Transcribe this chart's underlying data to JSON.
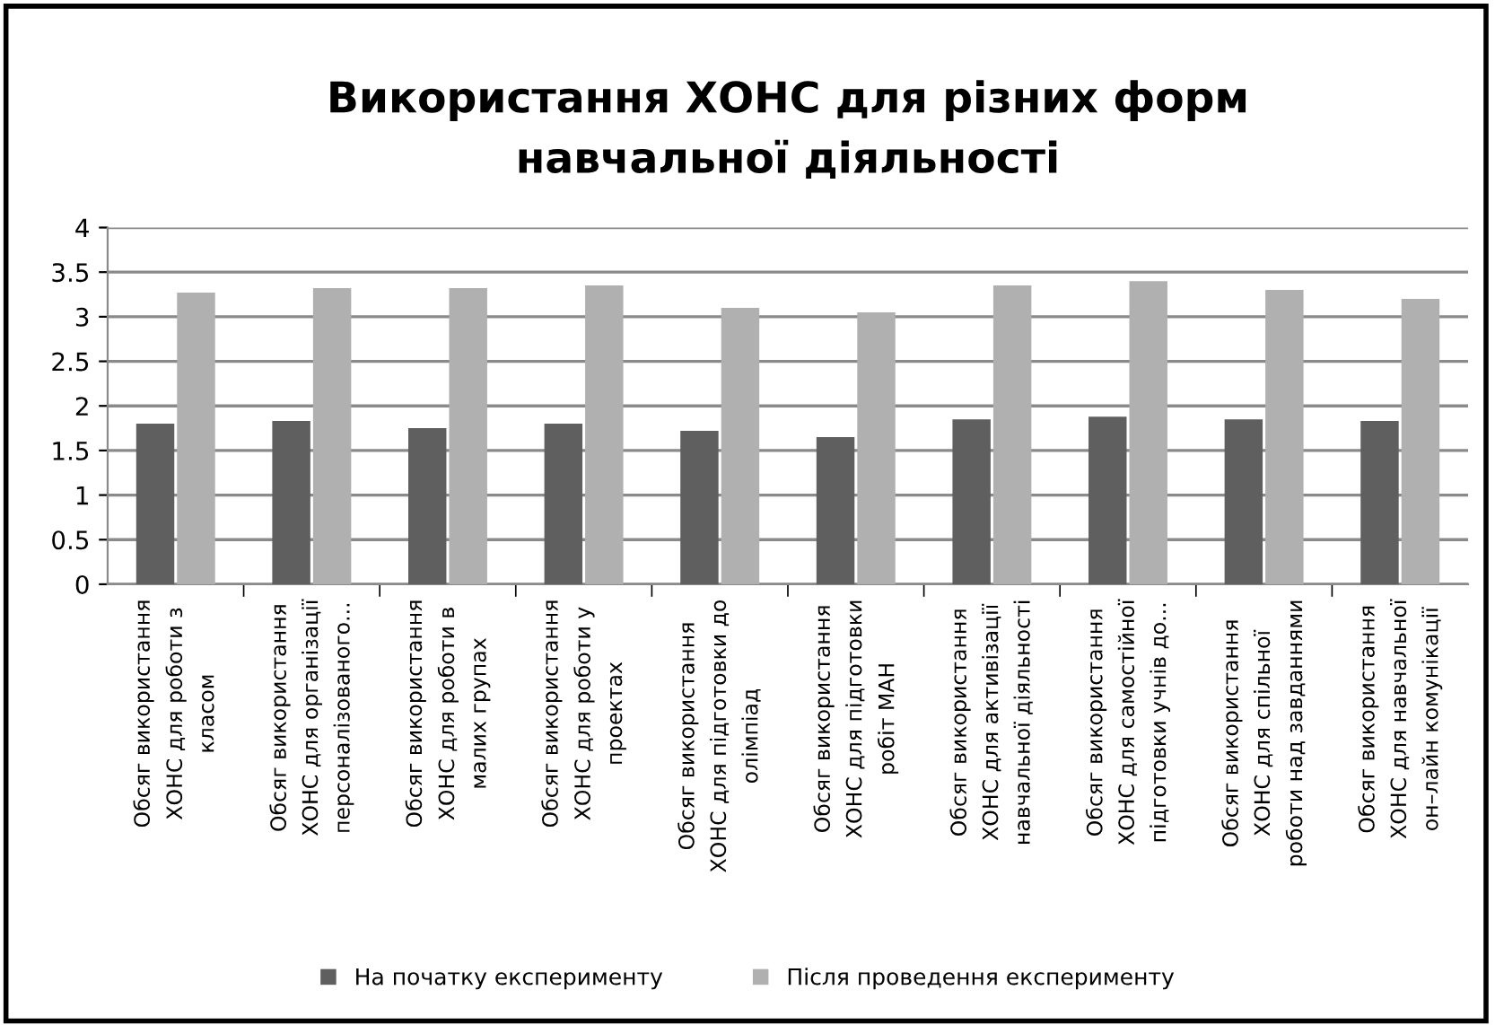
{
  "chart_data": {
    "type": "bar",
    "title": "Використання ХОНС для різних форм\nнавчальної діяльності",
    "categories": [
      "Обсяг використання\nХОНС для роботи з\nкласом",
      "Обсяг використання\nХОНС для організації\nперсоналізованого...",
      "Обсяг використання\nХОНС для роботи в\nмалих групах",
      "Обсяг використання\nХОНС для роботи у\nпроектах",
      "Обсяг використання\nХОНС для підготовки до\nолімпіад",
      "Обсяг використання\nХОНС для підготовки\nробіт МАН",
      "Обсяг використання\nХОНС для активізації\nнавчальної діяльності",
      "Обсяг використання\nХОНС для самостійної\nпідготовки учнів до...",
      "Обсяг використання\nХОНС для спільної\nроботи над завданнями",
      "Обсяг використання\nХОНС для навчальної\nон–лайн комунікації"
    ],
    "series": [
      {
        "name": "На початку експерименту",
        "color": "#5f5f5f",
        "values": [
          1.8,
          1.83,
          1.75,
          1.8,
          1.72,
          1.65,
          1.85,
          1.88,
          1.85,
          1.83
        ]
      },
      {
        "name": "Після проведення експерименту",
        "color": "#b0b0b0",
        "values": [
          3.27,
          3.32,
          3.32,
          3.35,
          3.1,
          3.05,
          3.35,
          3.4,
          3.3,
          3.2
        ]
      }
    ],
    "ylim": [
      0,
      4
    ],
    "yticks": [
      0,
      0.5,
      1,
      1.5,
      2,
      2.5,
      3,
      3.5,
      4
    ],
    "grid": "y",
    "legend": "bottom"
  }
}
